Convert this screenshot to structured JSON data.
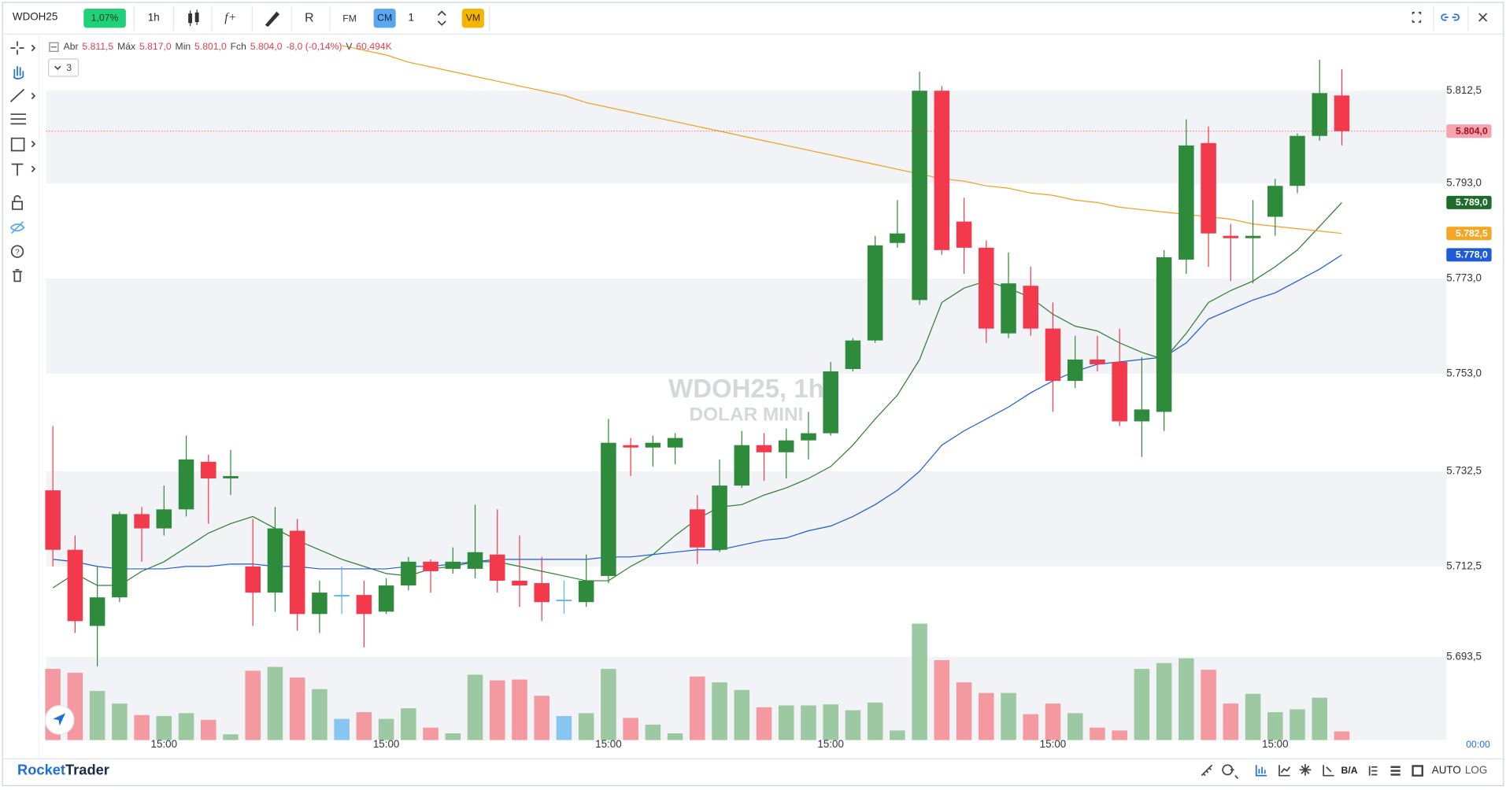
{
  "ui": {
    "symbol": "WDOH25",
    "change_pill": "1,07%",
    "timeframe": "1h",
    "fm_button": "FM",
    "cm_button": "CM",
    "quantity": "1",
    "vm_button": "VM",
    "indicator_count": "3",
    "legend": [
      [
        "Abr",
        "5.811,5"
      ],
      [
        "Máx",
        "5.817,0"
      ],
      [
        "Min",
        "5.801,0"
      ],
      [
        "Fch",
        "5.804,0"
      ],
      [
        "-8,0 (-0,14%)"
      ],
      [
        "V",
        "60,494K"
      ]
    ],
    "watermark": [
      "WDOH25, 1h",
      "DOLAR MINI"
    ],
    "clock": "00:00",
    "brand": [
      "Rocket",
      "Trader"
    ],
    "bottom_buttons": [
      "B/A",
      "AUTO",
      "LOG"
    ]
  },
  "chart_data": {
    "type": "candlestick",
    "categories": [
      null,
      null,
      null,
      null,
      null,
      "15:00",
      null,
      null,
      null,
      null,
      null,
      null,
      null,
      null,
      null,
      "15:00",
      null,
      null,
      null,
      null,
      null,
      null,
      null,
      null,
      null,
      "15:00",
      null,
      null,
      null,
      null,
      null,
      null,
      null,
      null,
      null,
      "15:00",
      null,
      null,
      null,
      null,
      null,
      null,
      null,
      null,
      null,
      "15:00",
      null,
      null,
      null,
      null,
      null,
      null,
      null,
      null,
      null,
      "15:00",
      null,
      null,
      null
    ],
    "open": [
      5728.5,
      5716,
      5700,
      5706,
      5723.5,
      5720.5,
      5724.5,
      5734.5,
      5731,
      5712.5,
      5707,
      5720,
      5702.5,
      5706.5,
      5706.5,
      5703,
      5708.5,
      5713.5,
      5712,
      5712,
      5715,
      5709.5,
      5709,
      5705.5,
      5705,
      5710.5,
      5738,
      5737.5,
      5737.5,
      5724.5,
      5716,
      5729.5,
      5738,
      5736.5,
      5739,
      5740.5,
      5754,
      5760,
      5780.5,
      5768.5,
      5812.5,
      5785,
      5779.5,
      5761.5,
      5771.5,
      5762.5,
      5751.5,
      5756,
      5755.5,
      5743,
      5745,
      5777,
      5801.5,
      5782,
      5781.5,
      5786,
      5792.5,
      5803,
      5811.5
    ],
    "high": [
      5742,
      5719,
      5712.5,
      5724,
      5725,
      5729.5,
      5740,
      5736,
      5737,
      5722.5,
      5725,
      5722.5,
      5709.5,
      5712.5,
      5709.5,
      5710,
      5714.5,
      5714,
      5716.5,
      5725.5,
      5724.5,
      5719,
      5714.5,
      5709.5,
      5715,
      5743.5,
      5739.5,
      5740,
      5740.5,
      5727.5,
      5735,
      5741,
      5740.5,
      5741.5,
      5745,
      5755.5,
      5760.5,
      5782,
      5789.5,
      5816.5,
      5813.5,
      5790,
      5781,
      5778.5,
      5775.5,
      5768,
      5761,
      5761,
      5762.5,
      5756.5,
      5779,
      5806.5,
      5805,
      5784.5,
      5789.5,
      5794,
      5803.5,
      5819,
      5817
    ],
    "low": [
      5712.5,
      5698.5,
      5691.5,
      5705,
      5713.5,
      5719,
      5723,
      5721.5,
      5727.5,
      5700,
      5703,
      5699,
      5698.5,
      5702.5,
      5695.5,
      5702.5,
      5707.5,
      5707,
      5711,
      5710,
      5707,
      5704,
      5701,
      5702.5,
      5704,
      5709,
      5731.5,
      5733.5,
      5734,
      5713,
      5715.5,
      5729,
      5730.5,
      5731,
      5735,
      5740,
      5753.5,
      5759.5,
      5779.5,
      5767.5,
      5778,
      5774,
      5759.5,
      5760.5,
      5761,
      5745,
      5750,
      5753.5,
      5742,
      5735.5,
      5741,
      5774,
      5775.5,
      5772.5,
      5772,
      5782,
      5791,
      5802,
      5801
    ],
    "close": [
      5716,
      5701,
      5706,
      5723.5,
      5720.5,
      5724.5,
      5735,
      5731,
      5731.5,
      5707,
      5720.5,
      5702.5,
      5707,
      5706.5,
      5702.5,
      5708.5,
      5713.5,
      5711.5,
      5713.5,
      5715.5,
      5709.5,
      5708.5,
      5705,
      5705.5,
      5709.5,
      5738.5,
      5737.5,
      5738.5,
      5739.5,
      5716.5,
      5729.5,
      5738,
      5736.5,
      5739,
      5740.5,
      5753.5,
      5760,
      5780,
      5782.5,
      5812.5,
      5779,
      5779.5,
      5762.5,
      5772,
      5762.5,
      5751.5,
      5756,
      5755,
      5743,
      5745.5,
      5777.5,
      5801,
      5782.5,
      5781.5,
      5782,
      5792.5,
      5803,
      5812,
      5804
    ],
    "volume": [
      497,
      470,
      343,
      255,
      175,
      168,
      188,
      141,
      40,
      484,
      511,
      437,
      356,
      148,
      195,
      148,
      222,
      87,
      47,
      457,
      417,
      423,
      309,
      168,
      188,
      497,
      155,
      108,
      47,
      444,
      403,
      350,
      229,
      242,
      242,
      249,
      208,
      262,
      67,
      813,
      558,
      403,
      329,
      329,
      181,
      255,
      188,
      87,
      67,
      497,
      538,
      571,
      491,
      255,
      323,
      195,
      215,
      296,
      60.494
    ],
    "volume_lim": [
      0,
      4900
    ],
    "colors": {
      "up": "#2e8b3c",
      "down": "#f23a4c",
      "flat": "#5ab4e8",
      "volume_up": "#9cc8a2",
      "volume_down": "#f3999f",
      "volume_flat": "#86c6f0"
    },
    "lines": [
      {
        "color": "#2e7d32",
        "values": [
          5708,
          5711,
          5708.5,
          5708.5,
          5711.5,
          5713.5,
          5716.5,
          5719.5,
          5721.5,
          5723,
          5720.5,
          5718,
          5716,
          5714,
          5712.5,
          5711,
          5710.5,
          5712,
          5712.5,
          5713.5,
          5713.5,
          5712.5,
          5711.5,
          5710.5,
          5709.5,
          5709.5,
          5712.5,
          5715,
          5719,
          5722.5,
          5725,
          5725.5,
          5727.5,
          5729,
          5731,
          5733.5,
          5738,
          5743.5,
          5748.5,
          5756,
          5768,
          5771,
          5772.5,
          5771,
          5769,
          5765.5,
          5763,
          5762,
          5759.5,
          5757.5,
          5756,
          5761.5,
          5768,
          5770.5,
          5772.5,
          5775.5,
          5779,
          5784,
          5789
        ]
      },
      {
        "color": "#1e5bd8",
        "values": [
          5714,
          5713.5,
          5712.5,
          5712,
          5712,
          5712,
          5712.5,
          5712.5,
          5713,
          5713,
          5712.5,
          5712.5,
          5712,
          5712,
          5712,
          5712,
          5712.5,
          5712.5,
          5713,
          5713.5,
          5714,
          5714,
          5714,
          5714,
          5714,
          5714.5,
          5714.5,
          5715,
          5715.5,
          5716,
          5716,
          5717,
          5718,
          5718.5,
          5720,
          5721,
          5723,
          5725.5,
          5728.5,
          5732.5,
          5738,
          5741,
          5743.5,
          5746,
          5749,
          5751.5,
          5753.5,
          5755,
          5755.5,
          5756,
          5756.5,
          5759.5,
          5764.5,
          5766.5,
          5768.5,
          5770,
          5772.5,
          5775,
          5778
        ]
      },
      {
        "color": "#f0a020",
        "values": [
          null,
          null,
          null,
          null,
          null,
          null,
          null,
          null,
          null,
          null,
          null,
          null,
          null,
          5822,
          5821,
          5820,
          5818.5,
          5817.5,
          5816.5,
          5815.5,
          5814.5,
          5813.5,
          5812.5,
          5811.5,
          5810,
          5809,
          5808,
          5807,
          5806,
          5805,
          5804,
          5803,
          5802,
          5801,
          5800,
          5799,
          5798,
          5797,
          5796,
          5795,
          5794,
          5793.5,
          5792.5,
          5792,
          5791,
          5790.5,
          5789.5,
          5789,
          5788,
          5787.5,
          5787,
          5786.5,
          5786,
          5785.5,
          5784.5,
          5784,
          5783.5,
          5783,
          5782.5
        ]
      }
    ],
    "price_tags": [
      {
        "value": 5804,
        "label": "5.804,0",
        "color": "#f5a3ad",
        "text_color": "#9c0f22"
      },
      {
        "value": 5789,
        "label": "5.789,0",
        "color": "#1e6b2a",
        "text_color": "#ffffff"
      },
      {
        "value": 5782.5,
        "label": "5.782,5",
        "color": "#f5a623",
        "text_color": "#ffffff"
      },
      {
        "value": 5778,
        "label": "5.778,0",
        "color": "#1e5bd8",
        "text_color": "#ffffff"
      }
    ],
    "last_price_line": true,
    "bands": true,
    "ylim": [
      5676,
      5823.5
    ],
    "yticks": [
      {
        "value": 5693.5,
        "label": "5.693,5"
      },
      {
        "value": 5712.5,
        "label": "5.712,5"
      },
      {
        "value": 5732.5,
        "label": "5.732,5"
      },
      {
        "value": 5753,
        "label": "5.753,0"
      },
      {
        "value": 5773,
        "label": "5.773,0"
      },
      {
        "value": 5793,
        "label": "5.793,0"
      },
      {
        "value": 5812.5,
        "label": "5.812,5"
      }
    ]
  }
}
